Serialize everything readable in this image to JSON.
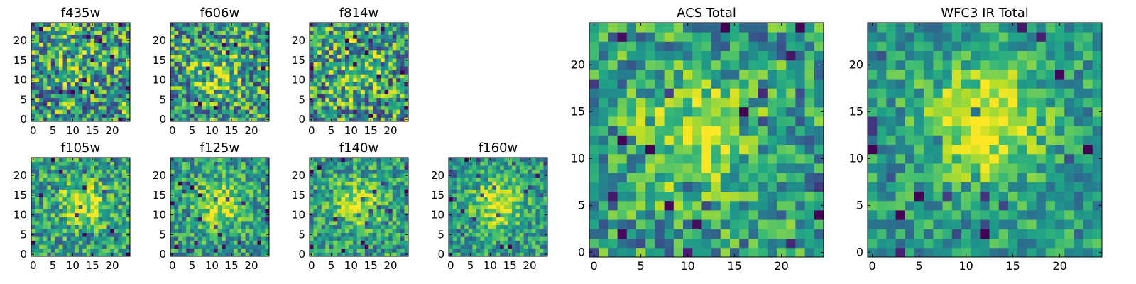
{
  "chart_data": [
    {
      "type": "heatmap",
      "title": "f435w",
      "grid_size": 25,
      "xticks": [
        "0",
        "5",
        "10",
        "15",
        "20"
      ],
      "yticks": [
        "0",
        "5",
        "10",
        "15",
        "20"
      ],
      "colormap": "viridis",
      "peak": [
        12,
        12
      ],
      "peak_strength": 0.2,
      "noise": 0.85,
      "seed": 11
    },
    {
      "type": "heatmap",
      "title": "f606w",
      "grid_size": 25,
      "xticks": [
        "0",
        "5",
        "10",
        "15",
        "20"
      ],
      "yticks": [
        "0",
        "5",
        "10",
        "15",
        "20"
      ],
      "colormap": "viridis",
      "peak": [
        12,
        11
      ],
      "peak_strength": 0.3,
      "noise": 0.8,
      "seed": 23
    },
    {
      "type": "heatmap",
      "title": "f814w",
      "grid_size": 25,
      "xticks": [
        "0",
        "5",
        "10",
        "15",
        "20"
      ],
      "yticks": [
        "0",
        "5",
        "10",
        "15",
        "20"
      ],
      "colormap": "viridis",
      "peak": [
        12,
        12
      ],
      "peak_strength": 0.25,
      "noise": 0.85,
      "seed": 37
    },
    {
      "type": "heatmap",
      "title": "f105w",
      "grid_size": 25,
      "xticks": [
        "0",
        "5",
        "10",
        "15",
        "20"
      ],
      "yticks": [
        "0",
        "5",
        "10",
        "15",
        "20"
      ],
      "colormap": "viridis",
      "peak": [
        13,
        13
      ],
      "peak_strength": 0.5,
      "noise": 0.6,
      "seed": 41
    },
    {
      "type": "heatmap",
      "title": "f125w",
      "grid_size": 25,
      "xticks": [
        "0",
        "5",
        "10",
        "15",
        "20"
      ],
      "yticks": [
        "0",
        "5",
        "10",
        "15",
        "20"
      ],
      "colormap": "viridis",
      "peak": [
        12,
        13
      ],
      "peak_strength": 0.5,
      "noise": 0.55,
      "seed": 53
    },
    {
      "type": "heatmap",
      "title": "f140w",
      "grid_size": 25,
      "xticks": [
        "0",
        "5",
        "10",
        "15",
        "20"
      ],
      "yticks": [
        "0",
        "5",
        "10",
        "15",
        "20"
      ],
      "colormap": "viridis",
      "peak": [
        12,
        13
      ],
      "peak_strength": 0.5,
      "noise": 0.55,
      "seed": 67
    },
    {
      "type": "heatmap",
      "title": "f160w",
      "grid_size": 25,
      "xticks": [
        "0",
        "5",
        "10",
        "15",
        "20"
      ],
      "yticks": [
        "0",
        "5",
        "10",
        "15",
        "20"
      ],
      "colormap": "viridis",
      "peak": [
        12,
        13
      ],
      "peak_strength": 0.55,
      "noise": 0.5,
      "seed": 79
    },
    {
      "type": "heatmap",
      "title": "ACS Total",
      "grid_size": 25,
      "xticks": [
        "0",
        "5",
        "10",
        "15",
        "20"
      ],
      "yticks": [
        "0",
        "5",
        "10",
        "15",
        "20"
      ],
      "colormap": "viridis",
      "peak": [
        11,
        12
      ],
      "peak_strength": 0.45,
      "noise": 0.6,
      "seed": 91
    },
    {
      "type": "heatmap",
      "title": "WFC3 IR Total",
      "grid_size": 25,
      "xticks": [
        "0",
        "5",
        "10",
        "15",
        "20"
      ],
      "yticks": [
        "0",
        "5",
        "10",
        "15",
        "20"
      ],
      "colormap": "viridis",
      "peak": [
        12,
        14
      ],
      "peak_strength": 0.6,
      "noise": 0.45,
      "seed": 103
    }
  ]
}
